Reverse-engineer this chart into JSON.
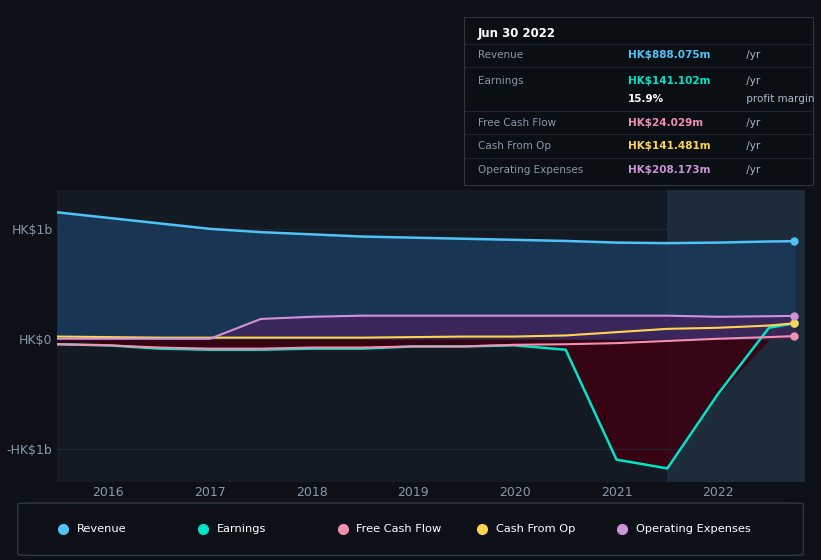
{
  "bg_color": "#0d1117",
  "plot_bg_color": "#131a24",
  "grid_color": "#1e2d3d",
  "title_box": {
    "date": "Jun 30 2022",
    "rows": [
      {
        "label": "Revenue",
        "value": "HK$888.075m",
        "value_color": "#4fc3f7",
        "suffix": " /yr"
      },
      {
        "label": "Earnings",
        "value": "HK$141.102m",
        "value_color": "#00e5c8",
        "suffix": " /yr"
      },
      {
        "label": "",
        "value": "15.9%",
        "value_color": "#ffffff",
        "suffix": " profit margin"
      },
      {
        "label": "Free Cash Flow",
        "value": "HK$24.029m",
        "value_color": "#f48fb1",
        "suffix": " /yr"
      },
      {
        "label": "Cash From Op",
        "value": "HK$141.481m",
        "value_color": "#ffd54f",
        "suffix": " /yr"
      },
      {
        "label": "Operating Expenses",
        "value": "HK$208.173m",
        "value_color": "#ce93d8",
        "suffix": " /yr"
      }
    ]
  },
  "highlight_x_start": 2021.5,
  "highlight_x_end": 2022.85,
  "highlight_color": "#1e3040",
  "years": [
    2015.5,
    2016.0,
    2016.5,
    2017.0,
    2017.5,
    2018.0,
    2018.5,
    2019.0,
    2019.5,
    2020.0,
    2020.5,
    2021.0,
    2021.5,
    2022.0,
    2022.5,
    2022.75
  ],
  "revenue": [
    1.15,
    1.1,
    1.05,
    1.0,
    0.97,
    0.95,
    0.93,
    0.92,
    0.91,
    0.9,
    0.89,
    0.875,
    0.87,
    0.875,
    0.885,
    0.888
  ],
  "earnings": [
    -0.05,
    -0.06,
    -0.09,
    -0.1,
    -0.1,
    -0.09,
    -0.09,
    -0.07,
    -0.07,
    -0.06,
    -0.1,
    -1.1,
    -1.18,
    -0.5,
    0.1,
    0.141
  ],
  "free_cash": [
    -0.05,
    -0.06,
    -0.08,
    -0.09,
    -0.09,
    -0.08,
    -0.08,
    -0.07,
    -0.07,
    -0.055,
    -0.05,
    -0.04,
    -0.02,
    0.0,
    0.015,
    0.024
  ],
  "cash_from_op": [
    0.02,
    0.015,
    0.01,
    0.01,
    0.01,
    0.01,
    0.01,
    0.015,
    0.02,
    0.02,
    0.03,
    0.06,
    0.09,
    0.1,
    0.12,
    0.141
  ],
  "op_expenses": [
    0.0,
    0.0,
    0.0,
    0.0,
    0.18,
    0.2,
    0.21,
    0.21,
    0.21,
    0.21,
    0.21,
    0.21,
    0.21,
    0.2,
    0.205,
    0.208
  ],
  "revenue_color": "#4fc3f7",
  "earnings_color": "#00e5c8",
  "free_cash_color": "#f48fb1",
  "cash_from_op_color": "#ffd54f",
  "op_expenses_color": "#ce93d8",
  "revenue_fill": "#1a3a5c",
  "earnings_fill_pos": "#003d35",
  "earnings_fill_neg": "#3d0010",
  "op_expenses_fill": "#4a2060",
  "ylim": [
    -1.3,
    1.35
  ],
  "yticks": [
    -1.0,
    0.0,
    1.0
  ],
  "ytick_labels": [
    "-HK$1b",
    "HK$0",
    "HK$1b"
  ],
  "xlim": [
    2015.5,
    2022.85
  ],
  "xticks": [
    2016,
    2017,
    2018,
    2019,
    2020,
    2021,
    2022
  ],
  "legend_items": [
    {
      "label": "Revenue",
      "color": "#4fc3f7"
    },
    {
      "label": "Earnings",
      "color": "#00e5c8"
    },
    {
      "label": "Free Cash Flow",
      "color": "#f48fb1"
    },
    {
      "label": "Cash From Op",
      "color": "#ffd54f"
    },
    {
      "label": "Operating Expenses",
      "color": "#ce93d8"
    }
  ]
}
